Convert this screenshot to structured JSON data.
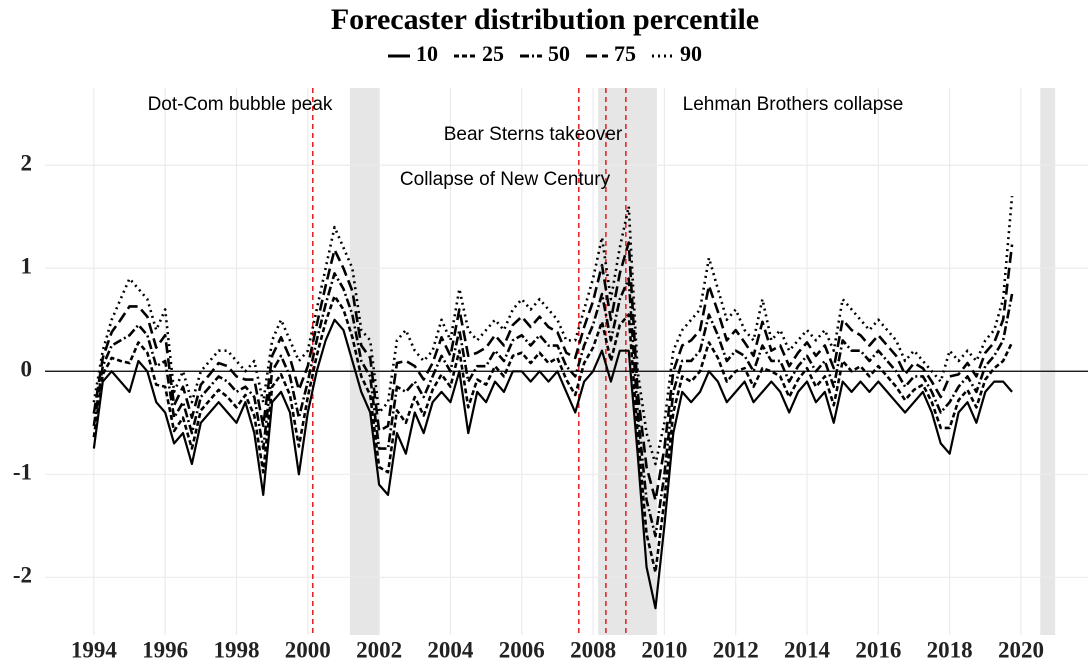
{
  "chart_data": {
    "type": "line",
    "legend_title": "Forecaster distribution percentile",
    "legend_position": "top",
    "grid": true,
    "xlim": [
      1992.63,
      2021.88
    ],
    "ylim": [
      -2.56,
      2.75
    ],
    "xticks": [
      1994,
      1996,
      1998,
      2000,
      2002,
      2004,
      2006,
      2008,
      2010,
      2012,
      2014,
      2016,
      2018,
      2020
    ],
    "yticks": [
      -2,
      -1,
      0,
      1,
      2
    ],
    "hline": 0,
    "shaded": [
      [
        2001.18,
        2002.02
      ],
      [
        2008.14,
        2009.79
      ],
      [
        2020.54,
        2020.96
      ]
    ],
    "shade_color": "#e6e6e6",
    "events": [
      {
        "x": 2000.14,
        "label": "Dot-Com bubble peak"
      },
      {
        "x": 2007.6,
        "label": "Collapse of New Century"
      },
      {
        "x": 2008.36,
        "label": "Bear Sterns takeover"
      },
      {
        "x": 2008.92,
        "label": "Lehman Brothers collapse"
      }
    ],
    "event_color": "#e41a1c",
    "x": [
      1994,
      1994.25,
      1994.5,
      1994.75,
      1995,
      1995.25,
      1995.5,
      1995.75,
      1996,
      1996.25,
      1996.5,
      1996.75,
      1997,
      1997.25,
      1997.5,
      1997.75,
      1998,
      1998.25,
      1998.5,
      1998.75,
      1999,
      1999.25,
      1999.5,
      1999.75,
      2000,
      2000.25,
      2000.5,
      2000.75,
      2001,
      2001.25,
      2001.5,
      2001.75,
      2002,
      2002.25,
      2002.5,
      2002.75,
      2003,
      2003.25,
      2003.5,
      2003.75,
      2004,
      2004.25,
      2004.5,
      2004.75,
      2005,
      2005.25,
      2005.5,
      2005.75,
      2006,
      2006.25,
      2006.5,
      2006.75,
      2007,
      2007.25,
      2007.5,
      2007.75,
      2008,
      2008.25,
      2008.5,
      2008.75,
      2009,
      2009.25,
      2009.5,
      2009.75,
      2010,
      2010.25,
      2010.5,
      2010.75,
      2011,
      2011.25,
      2011.5,
      2011.75,
      2012,
      2012.25,
      2012.5,
      2012.75,
      2013,
      2013.25,
      2013.5,
      2013.75,
      2014,
      2014.25,
      2014.5,
      2014.75,
      2015,
      2015.25,
      2015.5,
      2015.75,
      2016,
      2016.25,
      2016.5,
      2016.75,
      2017,
      2017.25,
      2017.5,
      2017.75,
      2018,
      2018.25,
      2018.5,
      2018.75,
      2019,
      2019.25,
      2019.5,
      2019.75
    ],
    "series": [
      {
        "name": "10",
        "color": "#000000",
        "linestyle": "solid",
        "values": [
          -0.75,
          -0.1,
          0,
          -0.1,
          -0.2,
          0.1,
          0,
          -0.3,
          -0.4,
          -0.7,
          -0.6,
          -0.9,
          -0.5,
          -0.4,
          -0.3,
          -0.4,
          -0.5,
          -0.3,
          -0.6,
          -1.2,
          -0.3,
          -0.2,
          -0.4,
          -1.0,
          -0.4,
          0,
          0.3,
          0.5,
          0.4,
          0.1,
          -0.2,
          -0.4,
          -1.1,
          -1.2,
          -0.6,
          -0.8,
          -0.4,
          -0.6,
          -0.3,
          -0.2,
          -0.3,
          0,
          -0.6,
          -0.2,
          -0.3,
          -0.1,
          -0.2,
          0,
          0,
          -0.1,
          0,
          -0.1,
          0,
          -0.2,
          -0.4,
          -0.1,
          0,
          0.2,
          -0.1,
          0.2,
          0.2,
          -0.8,
          -1.9,
          -2.3,
          -1.5,
          -0.6,
          -0.2,
          -0.3,
          -0.2,
          0,
          -0.1,
          -0.3,
          -0.2,
          -0.1,
          -0.3,
          -0.2,
          -0.1,
          -0.2,
          -0.4,
          -0.2,
          -0.1,
          -0.3,
          -0.2,
          -0.5,
          -0.1,
          -0.2,
          -0.1,
          -0.2,
          -0.1,
          -0.2,
          -0.3,
          -0.4,
          -0.3,
          -0.2,
          -0.4,
          -0.7,
          -0.8,
          -0.4,
          -0.3,
          -0.5,
          -0.2,
          -0.1,
          -0.1,
          -0.2
        ]
      },
      {
        "name": "25",
        "color": "#000000",
        "linestyle": "dashed",
        "values": [
          -0.64,
          -0.03,
          0.13,
          0.1,
          0.08,
          0.28,
          0.18,
          -0.13,
          -0.15,
          -0.58,
          -0.45,
          -0.75,
          -0.38,
          -0.28,
          -0.18,
          -0.25,
          -0.35,
          -0.23,
          -0.43,
          -0.98,
          -0.15,
          -0.03,
          -0.23,
          -0.73,
          -0.25,
          0.15,
          0.48,
          0.73,
          0.6,
          0.33,
          -0.05,
          -0.23,
          -0.93,
          -0.98,
          -0.38,
          -0.5,
          -0.25,
          -0.43,
          -0.18,
          -0.03,
          -0.15,
          0.2,
          -0.35,
          -0.08,
          -0.13,
          0.05,
          -0.05,
          0.15,
          0.18,
          0.08,
          0.18,
          0.08,
          0.13,
          -0.08,
          -0.23,
          0.08,
          0.23,
          0.48,
          0.1,
          0.45,
          0.55,
          -0.6,
          -1.58,
          -1.95,
          -1.25,
          -0.4,
          -0.05,
          -0.1,
          0,
          0.28,
          0.13,
          -0.1,
          0,
          0.03,
          -0.15,
          0.03,
          0,
          -0.05,
          -0.25,
          -0.08,
          0.03,
          -0.15,
          -0.05,
          -0.33,
          0.1,
          0,
          0.05,
          -0.05,
          0.05,
          -0.05,
          -0.15,
          -0.28,
          -0.18,
          -0.13,
          -0.3,
          -0.55,
          -0.55,
          -0.28,
          -0.18,
          -0.35,
          -0.08,
          0.03,
          0.1,
          0.28
        ]
      },
      {
        "name": "50",
        "color": "#000000",
        "linestyle": "dashdot",
        "values": [
          -0.53,
          0.05,
          0.25,
          0.3,
          0.35,
          0.45,
          0.35,
          0.05,
          0.1,
          -0.45,
          -0.3,
          -0.6,
          -0.25,
          -0.15,
          -0.05,
          -0.1,
          -0.2,
          -0.15,
          -0.25,
          -0.75,
          0,
          0.15,
          -0.05,
          -0.45,
          -0.1,
          0.3,
          0.65,
          0.95,
          0.8,
          0.55,
          0.1,
          -0.05,
          -0.75,
          -0.75,
          -0.15,
          -0.2,
          -0.1,
          -0.25,
          -0.05,
          0.15,
          0,
          0.4,
          -0.1,
          0.05,
          0.05,
          0.2,
          0.1,
          0.3,
          0.35,
          0.25,
          0.35,
          0.25,
          0.25,
          0.05,
          -0.05,
          0.25,
          0.45,
          0.75,
          0.3,
          0.7,
          0.9,
          -0.4,
          -1.25,
          -1.6,
          -1.0,
          -0.2,
          0.1,
          0.1,
          0.2,
          0.55,
          0.35,
          0.1,
          0.2,
          0.15,
          0,
          0.25,
          0.1,
          0.1,
          -0.1,
          0.05,
          0.15,
          0,
          0.1,
          -0.15,
          0.3,
          0.2,
          0.2,
          0.1,
          0.2,
          0.1,
          0,
          -0.15,
          -0.05,
          -0.05,
          -0.2,
          -0.4,
          -0.3,
          -0.15,
          -0.05,
          -0.2,
          0.05,
          0.15,
          0.3,
          0.75
        ]
      },
      {
        "name": "75",
        "color": "#000000",
        "linestyle": "longdash",
        "values": [
          -0.41,
          0.13,
          0.38,
          0.5,
          0.63,
          0.63,
          0.53,
          0.23,
          0.35,
          -0.33,
          -0.15,
          -0.45,
          -0.13,
          -0.03,
          0.08,
          0.05,
          -0.05,
          -0.08,
          -0.08,
          -0.53,
          0.15,
          0.33,
          0.13,
          -0.18,
          0.05,
          0.45,
          0.83,
          1.18,
          1.0,
          0.78,
          0.25,
          0.13,
          -0.58,
          -0.53,
          0.08,
          0.1,
          0.05,
          -0.08,
          0.08,
          0.33,
          0.15,
          0.6,
          0.15,
          0.18,
          0.23,
          0.35,
          0.25,
          0.45,
          0.53,
          0.43,
          0.53,
          0.43,
          0.38,
          0.18,
          0.13,
          0.43,
          0.68,
          1.03,
          0.5,
          0.95,
          1.25,
          -0.2,
          -0.93,
          -1.25,
          -0.75,
          0,
          0.25,
          0.3,
          0.4,
          0.83,
          0.58,
          0.3,
          0.4,
          0.28,
          0.15,
          0.48,
          0.2,
          0.25,
          0.05,
          0.18,
          0.28,
          0.15,
          0.25,
          0.03,
          0.5,
          0.4,
          0.35,
          0.25,
          0.35,
          0.25,
          0.15,
          -0.03,
          0.08,
          0.03,
          -0.1,
          -0.25,
          -0.05,
          -0.03,
          0.08,
          -0.05,
          0.18,
          0.28,
          0.5,
          1.23
        ]
      },
      {
        "name": "90",
        "color": "#000000",
        "linestyle": "dotted",
        "values": [
          -0.3,
          0.2,
          0.5,
          0.7,
          0.9,
          0.8,
          0.7,
          0.4,
          0.6,
          -0.2,
          0,
          -0.3,
          0,
          0.1,
          0.2,
          0.2,
          0.1,
          0,
          0.1,
          -0.3,
          0.3,
          0.5,
          0.3,
          0.1,
          0.2,
          0.6,
          1.0,
          1.4,
          1.2,
          1.0,
          0.4,
          0.3,
          -0.4,
          -0.3,
          0.3,
          0.4,
          0.2,
          0.1,
          0.2,
          0.5,
          0.3,
          0.8,
          0.4,
          0.3,
          0.4,
          0.5,
          0.4,
          0.6,
          0.7,
          0.6,
          0.7,
          0.6,
          0.5,
          0.3,
          0.3,
          0.6,
          0.9,
          1.3,
          0.7,
          1.2,
          1.6,
          0,
          -0.6,
          -0.9,
          -0.5,
          0.2,
          0.4,
          0.5,
          0.6,
          1.1,
          0.8,
          0.5,
          0.6,
          0.4,
          0.3,
          0.7,
          0.3,
          0.4,
          0.2,
          0.3,
          0.4,
          0.3,
          0.4,
          0.2,
          0.7,
          0.6,
          0.5,
          0.4,
          0.5,
          0.4,
          0.3,
          0.1,
          0.2,
          0.1,
          0,
          -0.1,
          0.2,
          0.1,
          0.2,
          0.1,
          0.3,
          0.4,
          0.7,
          1.7
        ]
      }
    ]
  }
}
